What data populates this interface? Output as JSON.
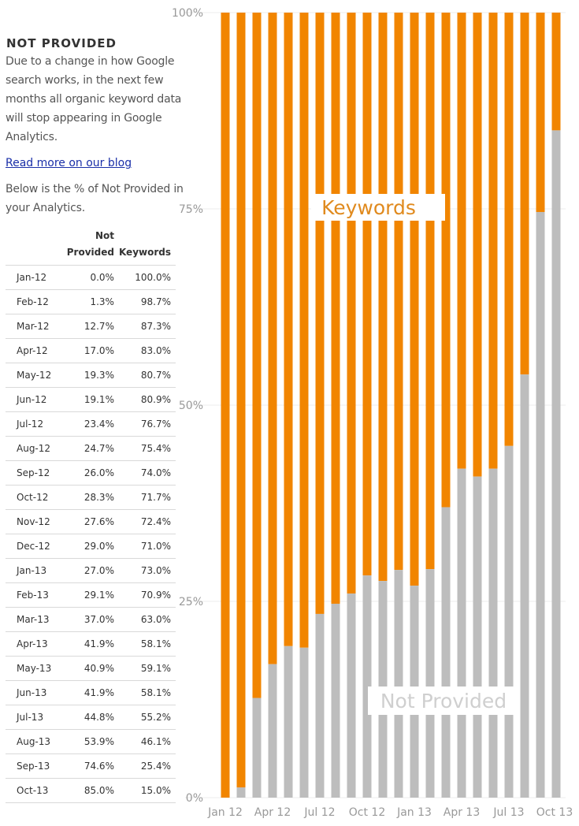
{
  "sidebar": {
    "title": "NOT PROVIDED",
    "intro": "Due to a change in how Google search works, in the next few months all organic keyword data will stop appearing in Google Analytics.",
    "link_text": "Read more on our blog",
    "below_text": "Below is the % of Not Provided in your Analytics.",
    "table": {
      "headers": [
        "",
        "Not Provided",
        "Keywords"
      ],
      "rows": [
        [
          "Jan-12",
          "0.0%",
          "100.0%"
        ],
        [
          "Feb-12",
          "1.3%",
          "98.7%"
        ],
        [
          "Mar-12",
          "12.7%",
          "87.3%"
        ],
        [
          "Apr-12",
          "17.0%",
          "83.0%"
        ],
        [
          "May-12",
          "19.3%",
          "80.7%"
        ],
        [
          "Jun-12",
          "19.1%",
          "80.9%"
        ],
        [
          "Jul-12",
          "23.4%",
          "76.7%"
        ],
        [
          "Aug-12",
          "24.7%",
          "75.4%"
        ],
        [
          "Sep-12",
          "26.0%",
          "74.0%"
        ],
        [
          "Oct-12",
          "28.3%",
          "71.7%"
        ],
        [
          "Nov-12",
          "27.6%",
          "72.4%"
        ],
        [
          "Dec-12",
          "29.0%",
          "71.0%"
        ],
        [
          "Jan-13",
          "27.0%",
          "73.0%"
        ],
        [
          "Feb-13",
          "29.1%",
          "70.9%"
        ],
        [
          "Mar-13",
          "37.0%",
          "63.0%"
        ],
        [
          "Apr-13",
          "41.9%",
          "58.1%"
        ],
        [
          "May-13",
          "40.9%",
          "59.1%"
        ],
        [
          "Jun-13",
          "41.9%",
          "58.1%"
        ],
        [
          "Jul-13",
          "44.8%",
          "55.2%"
        ],
        [
          "Aug-13",
          "53.9%",
          "46.1%"
        ],
        [
          "Sep-13",
          "74.6%",
          "25.4%"
        ],
        [
          "Oct-13",
          "85.0%",
          "15.0%"
        ]
      ]
    }
  },
  "colors": {
    "keywords": "#f18500",
    "not_provided": "#bdbdbd",
    "keywords_label": "#e08a1e",
    "not_provided_label": "#cfcfcf",
    "link": "#1a2fa8"
  },
  "chart_data": {
    "type": "bar",
    "stacked": true,
    "categories": [
      "Jan-12",
      "Feb-12",
      "Mar-12",
      "Apr-12",
      "May-12",
      "Jun-12",
      "Jul-12",
      "Aug-12",
      "Sep-12",
      "Oct-12",
      "Nov-12",
      "Dec-12",
      "Jan-13",
      "Feb-13",
      "Mar-13",
      "Apr-13",
      "May-13",
      "Jun-13",
      "Jul-13",
      "Aug-13",
      "Sep-13",
      "Oct-13"
    ],
    "series": [
      {
        "name": "Not Provided",
        "values": [
          0.0,
          1.3,
          12.7,
          17.0,
          19.3,
          19.1,
          23.4,
          24.7,
          26.0,
          28.3,
          27.6,
          29.0,
          27.0,
          29.1,
          37.0,
          41.9,
          40.9,
          41.9,
          44.8,
          53.9,
          74.6,
          85.0
        ]
      },
      {
        "name": "Keywords",
        "values": [
          100.0,
          98.7,
          87.3,
          83.0,
          80.7,
          80.9,
          76.7,
          75.4,
          74.0,
          71.7,
          72.4,
          71.0,
          73.0,
          70.9,
          63.0,
          58.1,
          59.1,
          58.1,
          55.2,
          46.1,
          25.4,
          15.0
        ]
      }
    ],
    "y_ticks": [
      "0%",
      "25%",
      "50%",
      "75%",
      "100%"
    ],
    "y_tick_values": [
      0,
      25,
      50,
      75,
      100
    ],
    "x_tick_labels": [
      "Jan 12",
      "Apr 12",
      "Jul 12",
      "Oct 12",
      "Jan 13",
      "Apr 13",
      "Jul 13",
      "Oct 13"
    ],
    "x_tick_indices": [
      0,
      3,
      6,
      9,
      12,
      15,
      18,
      21
    ],
    "ylim": [
      0,
      100
    ],
    "grid": true,
    "series_labels": [
      {
        "text": "Keywords",
        "series": "Keywords"
      },
      {
        "text": "Not Provided",
        "series": "Not Provided"
      }
    ]
  }
}
